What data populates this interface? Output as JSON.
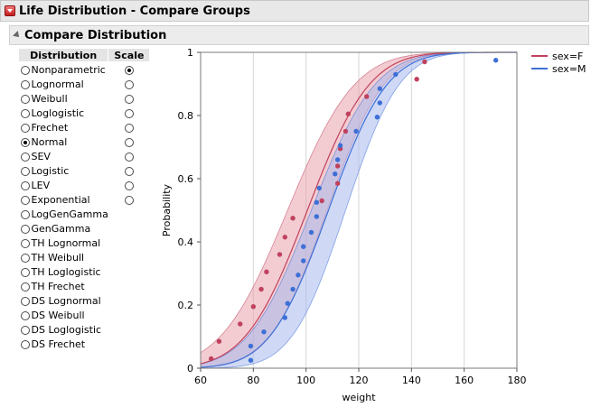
{
  "header": {
    "title": "Life Distribution - Compare Groups"
  },
  "section": {
    "title": "Compare Distribution"
  },
  "table": {
    "col_distribution": "Distribution",
    "col_scale": "Scale",
    "distributions": [
      {
        "label": "Nonparametric",
        "selected": false,
        "has_scale": true,
        "scale_selected": true
      },
      {
        "label": "Lognormal",
        "selected": false,
        "has_scale": true,
        "scale_selected": false
      },
      {
        "label": "Weibull",
        "selected": false,
        "has_scale": true,
        "scale_selected": false
      },
      {
        "label": "Loglogistic",
        "selected": false,
        "has_scale": true,
        "scale_selected": false
      },
      {
        "label": "Frechet",
        "selected": false,
        "has_scale": true,
        "scale_selected": false
      },
      {
        "label": "Normal",
        "selected": true,
        "has_scale": true,
        "scale_selected": false
      },
      {
        "label": "SEV",
        "selected": false,
        "has_scale": true,
        "scale_selected": false
      },
      {
        "label": "Logistic",
        "selected": false,
        "has_scale": true,
        "scale_selected": false
      },
      {
        "label": "LEV",
        "selected": false,
        "has_scale": true,
        "scale_selected": false
      },
      {
        "label": "Exponential",
        "selected": false,
        "has_scale": true,
        "scale_selected": false
      },
      {
        "label": "LogGenGamma",
        "selected": false,
        "has_scale": false,
        "scale_selected": false
      },
      {
        "label": "GenGamma",
        "selected": false,
        "has_scale": false,
        "scale_selected": false
      },
      {
        "label": "TH Lognormal",
        "selected": false,
        "has_scale": false,
        "scale_selected": false
      },
      {
        "label": "TH Weibull",
        "selected": false,
        "has_scale": false,
        "scale_selected": false
      },
      {
        "label": "TH Loglogistic",
        "selected": false,
        "has_scale": false,
        "scale_selected": false
      },
      {
        "label": "TH Frechet",
        "selected": false,
        "has_scale": false,
        "scale_selected": false
      },
      {
        "label": "DS Lognormal",
        "selected": false,
        "has_scale": false,
        "scale_selected": false
      },
      {
        "label": "DS Weibull",
        "selected": false,
        "has_scale": false,
        "scale_selected": false
      },
      {
        "label": "DS Loglogistic",
        "selected": false,
        "has_scale": false,
        "scale_selected": false
      },
      {
        "label": "DS Frechet",
        "selected": false,
        "has_scale": false,
        "scale_selected": false
      }
    ]
  },
  "chart_data": {
    "type": "line",
    "xlabel": "weight",
    "ylabel": "Probability",
    "xlim": [
      60,
      180
    ],
    "ylim": [
      0,
      1
    ],
    "x_ticks": [
      60,
      80,
      100,
      120,
      140,
      160,
      180
    ],
    "y_ticks": [
      0,
      0.2,
      0.4,
      0.6,
      0.8,
      1
    ],
    "y_tick_labels": [
      "0",
      "0.2",
      "0.4",
      "0.6",
      "0.8",
      "1"
    ],
    "grid": true,
    "legend_position": "top-right",
    "series": [
      {
        "name": "sex=F",
        "color": "#c0415e",
        "band_color": "#e8a3ac",
        "fit": {
          "mu": 100.5,
          "sigma": 18.5,
          "band_lower_mu": 108,
          "band_lower_sigma": 17,
          "band_upper_mu": 93,
          "band_upper_sigma": 20
        },
        "points": [
          [
            64,
            0.03
          ],
          [
            67,
            0.085
          ],
          [
            75,
            0.14
          ],
          [
            80,
            0.195
          ],
          [
            83,
            0.25
          ],
          [
            85,
            0.305
          ],
          [
            90,
            0.36
          ],
          [
            92,
            0.415
          ],
          [
            95,
            0.475
          ],
          [
            106,
            0.53
          ],
          [
            112,
            0.585
          ],
          [
            112,
            0.64
          ],
          [
            113,
            0.695
          ],
          [
            115,
            0.75
          ],
          [
            116,
            0.805
          ],
          [
            123,
            0.86
          ],
          [
            142,
            0.915
          ],
          [
            145,
            0.97
          ]
        ]
      },
      {
        "name": "sex=M",
        "color": "#3d6fd6",
        "band_color": "#a8b9ee",
        "fit": {
          "mu": 108.5,
          "sigma": 17.5,
          "band_lower_mu": 115,
          "band_lower_sigma": 16,
          "band_upper_mu": 102,
          "band_upper_sigma": 19
        },
        "points": [
          [
            79,
            0.025
          ],
          [
            79,
            0.07
          ],
          [
            84,
            0.115
          ],
          [
            92,
            0.16
          ],
          [
            93,
            0.205
          ],
          [
            95,
            0.25
          ],
          [
            97,
            0.295
          ],
          [
            99,
            0.34
          ],
          [
            99,
            0.385
          ],
          [
            102,
            0.43
          ],
          [
            104,
            0.48
          ],
          [
            104,
            0.525
          ],
          [
            105,
            0.57
          ],
          [
            111,
            0.615
          ],
          [
            112,
            0.66
          ],
          [
            113,
            0.705
          ],
          [
            119,
            0.75
          ],
          [
            127,
            0.795
          ],
          [
            128,
            0.84
          ],
          [
            128,
            0.885
          ],
          [
            134,
            0.93
          ],
          [
            172,
            0.975
          ]
        ]
      }
    ]
  }
}
